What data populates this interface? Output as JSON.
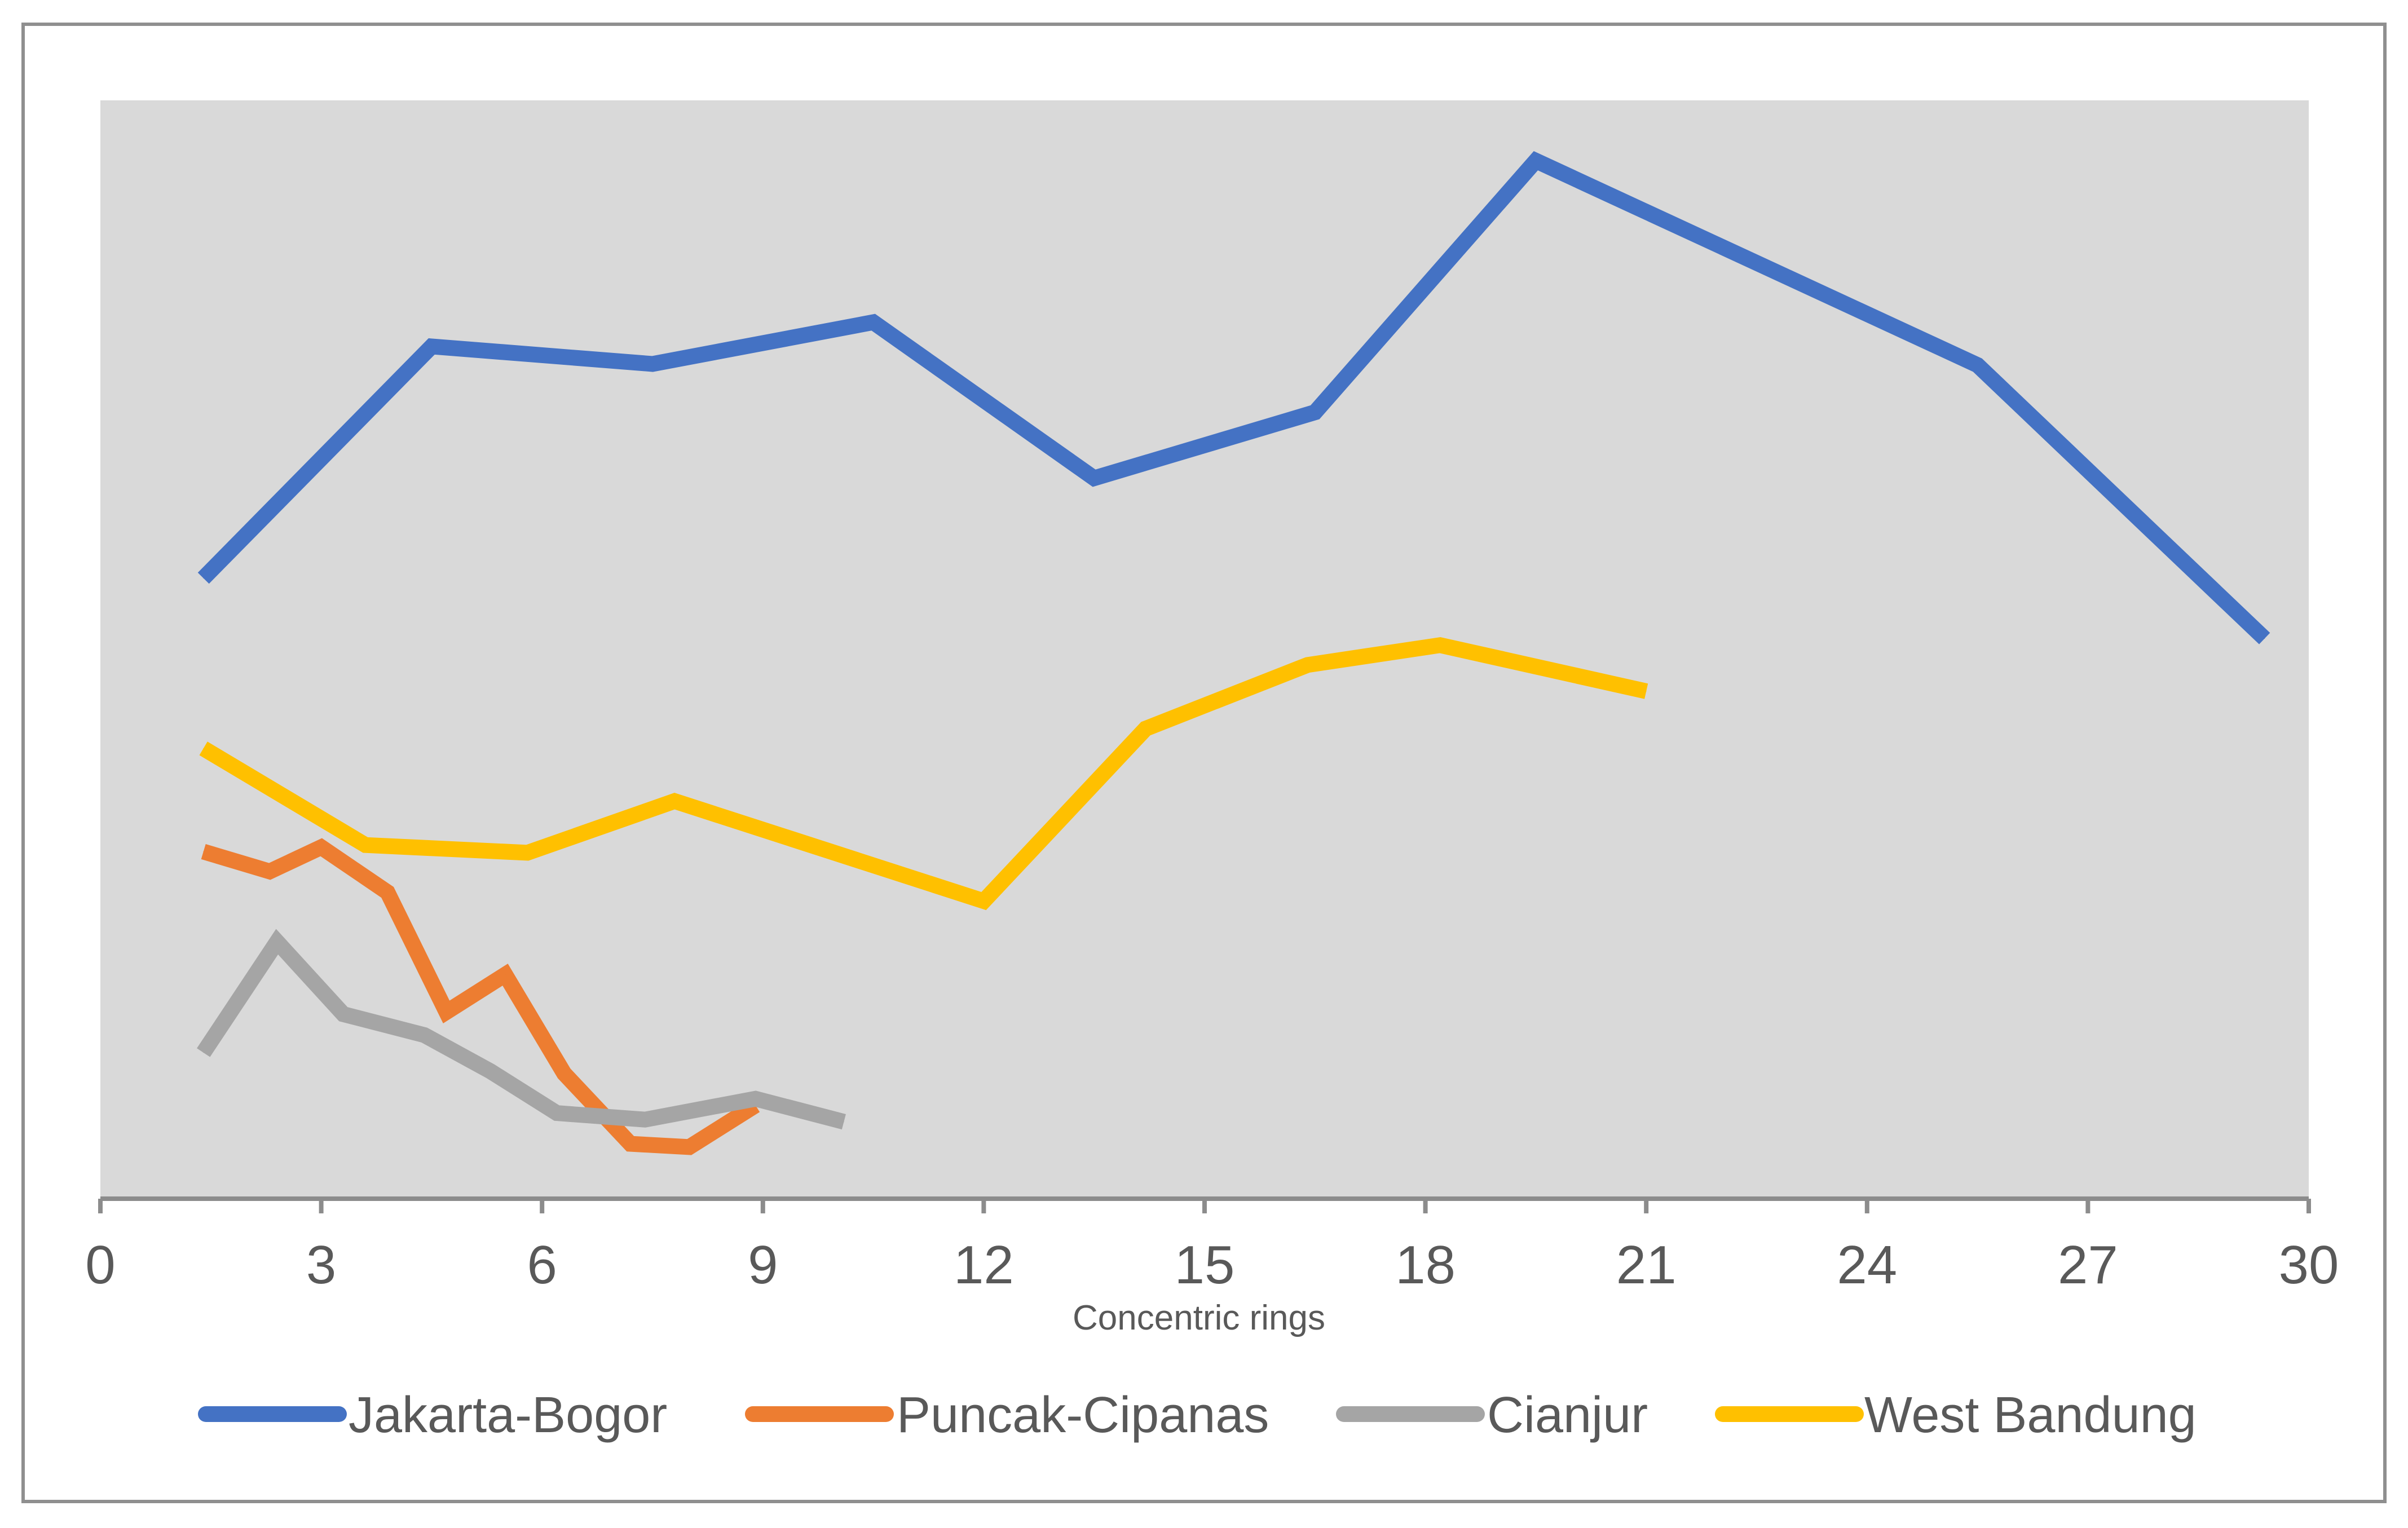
{
  "chart_data": {
    "type": "line",
    "title": "",
    "xlabel": "Concentric rings",
    "ylabel": "",
    "xlim": [
      0,
      30
    ],
    "ylim": [
      0,
      100
    ],
    "x_ticks": [
      "0",
      "3",
      "6",
      "9",
      "12",
      "15",
      "18",
      "21",
      "24",
      "27",
      "30"
    ],
    "grid": false,
    "legend_position": "bottom",
    "y_axis_labels_shown": false,
    "plot_background": "#d9d9d9",
    "series": [
      {
        "name": "Jakarta-Bogor",
        "color": "#4472c4",
        "x": [
          1.4,
          4.5,
          7.5,
          10.5,
          13.5,
          16.5,
          19.5,
          25.5,
          29.4
        ],
        "y": [
          56.5,
          77.6,
          76.0,
          79.8,
          65.6,
          71.6,
          94.5,
          75.9,
          51.0
        ]
      },
      {
        "name": "Puncak-Cipanas",
        "color": "#ed7d31",
        "x": [
          1.4,
          2.3,
          3.0,
          3.9,
          4.7,
          5.5,
          6.3,
          7.2,
          8.0,
          8.9
        ],
        "y": [
          31.6,
          29.8,
          32.0,
          27.9,
          17.0,
          20.4,
          11.4,
          5.0,
          4.7,
          8.5
        ]
      },
      {
        "name": "Cianjur",
        "color": "#a5a5a5",
        "x": [
          1.4,
          2.4,
          3.3,
          4.4,
          5.3,
          6.2,
          7.4,
          8.9,
          10.1
        ],
        "y": [
          13.3,
          23.4,
          16.8,
          14.9,
          11.6,
          7.8,
          7.2,
          9.1,
          7.0
        ]
      },
      {
        "name": "West Bandung",
        "color": "#ffc000",
        "x": [
          1.4,
          3.6,
          5.8,
          7.8,
          12.0,
          14.2,
          16.4,
          18.2,
          21.0
        ],
        "y": [
          41.0,
          32.2,
          31.5,
          36.2,
          27.1,
          42.8,
          48.6,
          50.4,
          46.2
        ]
      }
    ]
  }
}
